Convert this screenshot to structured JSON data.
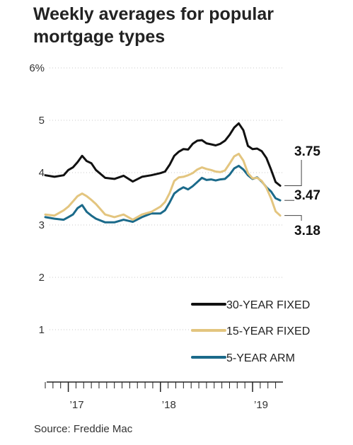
{
  "chart_data": {
    "type": "line",
    "title": "Weekly averages for popular mortgage types",
    "source": "Source: Freddie Mac",
    "xlim": [
      2016.75,
      2019.33
    ],
    "ylim": [
      0,
      6
    ],
    "y_ticks": [
      {
        "value": 6,
        "label": "6%"
      },
      {
        "value": 5,
        "label": "5"
      },
      {
        "value": 4,
        "label": "4"
      },
      {
        "value": 3,
        "label": "3"
      },
      {
        "value": 2,
        "label": "2"
      },
      {
        "value": 1,
        "label": "1"
      }
    ],
    "x_ticks": [
      {
        "value": 2017,
        "label": "’17"
      },
      {
        "value": 2018,
        "label": "’18"
      },
      {
        "value": 2019,
        "label": "’19"
      }
    ],
    "grid": true,
    "legend_position": "bottom-right",
    "series": [
      {
        "name": "30-YEAR FIXED",
        "color": "#111111",
        "end_label": "3.75",
        "x": [
          2016.75,
          2016.85,
          2016.95,
          2017.0,
          2017.05,
          2017.1,
          2017.15,
          2017.2,
          2017.25,
          2017.3,
          2017.4,
          2017.5,
          2017.6,
          2017.7,
          2017.8,
          2017.9,
          2018.0,
          2018.05,
          2018.1,
          2018.15,
          2018.2,
          2018.25,
          2018.3,
          2018.35,
          2018.4,
          2018.45,
          2018.5,
          2018.55,
          2018.6,
          2018.65,
          2018.7,
          2018.75,
          2018.8,
          2018.85,
          2018.9,
          2018.95,
          2019.0,
          2019.05,
          2019.1,
          2019.15,
          2019.2,
          2019.25,
          2019.3
        ],
        "values": [
          3.95,
          3.92,
          3.95,
          4.05,
          4.1,
          4.2,
          4.32,
          4.22,
          4.18,
          4.05,
          3.9,
          3.88,
          3.94,
          3.83,
          3.92,
          3.95,
          3.99,
          4.02,
          4.15,
          4.32,
          4.4,
          4.45,
          4.44,
          4.55,
          4.61,
          4.62,
          4.56,
          4.54,
          4.52,
          4.55,
          4.61,
          4.72,
          4.86,
          4.94,
          4.81,
          4.51,
          4.45,
          4.46,
          4.41,
          4.28,
          4.06,
          3.82,
          3.75
        ]
      },
      {
        "name": "15-YEAR FIXED",
        "color": "#e3c57f",
        "end_label": "3.18",
        "x": [
          2016.75,
          2016.85,
          2016.95,
          2017.0,
          2017.05,
          2017.1,
          2017.15,
          2017.2,
          2017.25,
          2017.3,
          2017.4,
          2017.5,
          2017.6,
          2017.7,
          2017.8,
          2017.9,
          2018.0,
          2018.05,
          2018.1,
          2018.15,
          2018.2,
          2018.25,
          2018.3,
          2018.35,
          2018.4,
          2018.45,
          2018.5,
          2018.55,
          2018.6,
          2018.65,
          2018.7,
          2018.75,
          2018.8,
          2018.85,
          2018.9,
          2018.95,
          2019.0,
          2019.05,
          2019.1,
          2019.15,
          2019.2,
          2019.25,
          2019.3
        ],
        "values": [
          3.2,
          3.18,
          3.28,
          3.35,
          3.45,
          3.55,
          3.6,
          3.55,
          3.48,
          3.4,
          3.2,
          3.15,
          3.2,
          3.1,
          3.2,
          3.25,
          3.35,
          3.44,
          3.61,
          3.84,
          3.91,
          3.92,
          3.95,
          3.99,
          4.06,
          4.1,
          4.07,
          4.05,
          4.02,
          4.01,
          4.04,
          4.17,
          4.31,
          4.36,
          4.23,
          3.99,
          3.89,
          3.9,
          3.84,
          3.71,
          3.51,
          3.26,
          3.18
        ]
      },
      {
        "name": "5-YEAR ARM",
        "color": "#1b6a8a",
        "end_label": "3.47",
        "x": [
          2016.75,
          2016.85,
          2016.95,
          2017.0,
          2017.05,
          2017.1,
          2017.15,
          2017.2,
          2017.25,
          2017.3,
          2017.4,
          2017.5,
          2017.6,
          2017.7,
          2017.8,
          2017.9,
          2018.0,
          2018.05,
          2018.1,
          2018.15,
          2018.2,
          2018.25,
          2018.3,
          2018.35,
          2018.4,
          2018.45,
          2018.5,
          2018.55,
          2018.6,
          2018.65,
          2018.7,
          2018.75,
          2018.8,
          2018.85,
          2018.9,
          2018.95,
          2019.0,
          2019.05,
          2019.1,
          2019.15,
          2019.2,
          2019.25,
          2019.3
        ],
        "values": [
          3.15,
          3.12,
          3.1,
          3.15,
          3.2,
          3.32,
          3.38,
          3.25,
          3.18,
          3.12,
          3.05,
          3.05,
          3.1,
          3.06,
          3.15,
          3.22,
          3.22,
          3.28,
          3.43,
          3.6,
          3.67,
          3.72,
          3.68,
          3.74,
          3.82,
          3.9,
          3.86,
          3.87,
          3.85,
          3.87,
          3.88,
          3.96,
          4.08,
          4.13,
          4.06,
          3.95,
          3.88,
          3.91,
          3.83,
          3.72,
          3.64,
          3.51,
          3.47
        ]
      }
    ]
  }
}
